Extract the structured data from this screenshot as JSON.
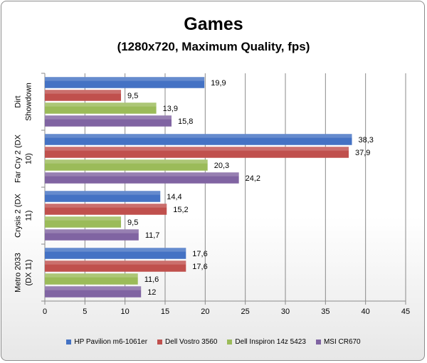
{
  "chart_data": {
    "type": "bar",
    "orientation": "horizontal",
    "title": "Games",
    "subtitle": "(1280x720, Maximum Quality, fps)",
    "categories": [
      "Dirt Showdown",
      "Far Cry 2 (DX 10)",
      "Crysis 2 (DX 11)",
      "Metro 2033 (DX 11)"
    ],
    "category_lines": [
      [
        "Dirt",
        "Showdown"
      ],
      [
        "Far Cry 2 (DX",
        "10)"
      ],
      [
        "Crysis 2 (DX",
        "11)"
      ],
      [
        "Metro 2033",
        "(DX 11)"
      ]
    ],
    "series": [
      {
        "name": "HP Pavilion m6-1061er",
        "color": "#4472c4",
        "values": [
          19.9,
          38.3,
          14.4,
          17.6
        ],
        "labels": [
          "19,9",
          "38,3",
          "14,4",
          "17,6"
        ]
      },
      {
        "name": "Dell Vostro 3560",
        "color": "#c0504d",
        "values": [
          9.5,
          37.9,
          15.2,
          17.6
        ],
        "labels": [
          "9,5",
          "37,9",
          "15,2",
          "17,6"
        ]
      },
      {
        "name": "Dell Inspiron 14z 5423",
        "color": "#9bbb59",
        "values": [
          13.9,
          20.3,
          9.5,
          11.6
        ],
        "labels": [
          "13,9",
          "20,3",
          "9,5",
          "11,6"
        ]
      },
      {
        "name": "MSI CR670",
        "color": "#8064a2",
        "values": [
          15.8,
          24.2,
          11.7,
          12
        ],
        "labels": [
          "15,8",
          "24,2",
          "11,7",
          "12"
        ]
      }
    ],
    "xlim": [
      0,
      45
    ],
    "xticks": [
      0,
      5,
      10,
      15,
      20,
      25,
      30,
      35,
      40,
      45
    ],
    "grid": "vertical",
    "legend": "bottom"
  }
}
